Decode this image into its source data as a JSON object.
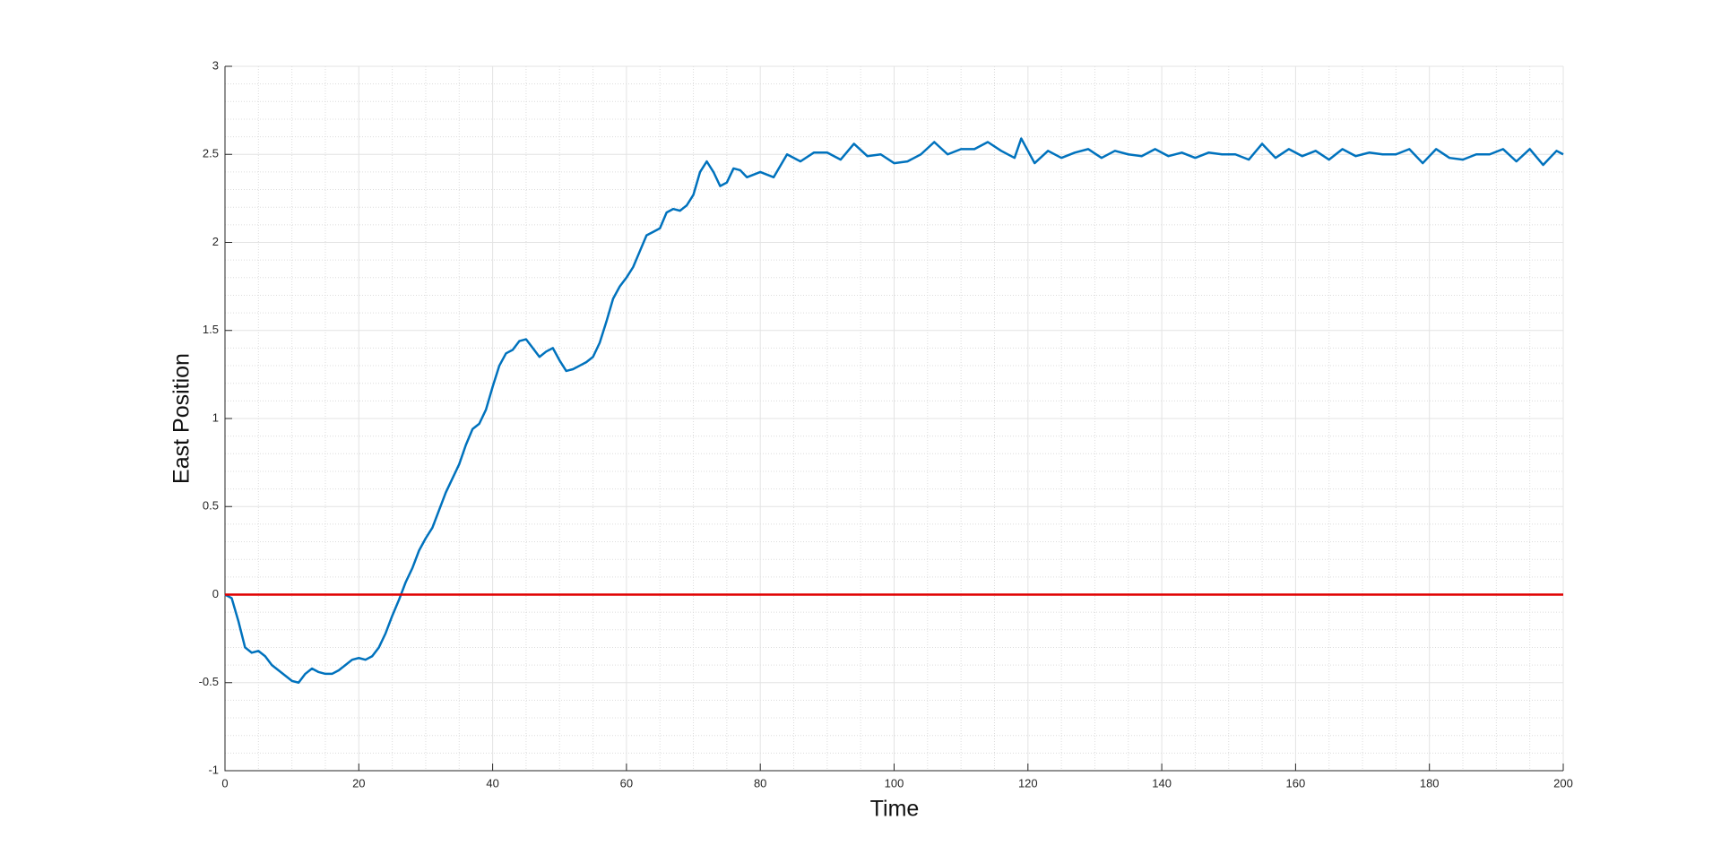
{
  "chart_data": {
    "type": "line",
    "xlabel": "Time",
    "ylabel": "East Position",
    "xlim": [
      0,
      200
    ],
    "ylim": [
      -1,
      3
    ],
    "xticks": [
      0,
      20,
      40,
      60,
      80,
      100,
      120,
      140,
      160,
      180,
      200
    ],
    "yticks": [
      -1,
      -0.5,
      0,
      0.5,
      1,
      1.5,
      2,
      2.5,
      3
    ],
    "xminorticks": [
      5,
      10,
      15,
      25,
      30,
      35,
      45,
      50,
      55,
      65,
      70,
      75,
      85,
      90,
      95,
      105,
      110,
      115,
      125,
      130,
      135,
      145,
      150,
      155,
      165,
      170,
      175,
      185,
      190,
      195
    ],
    "yminorticks": [
      -0.9,
      -0.8,
      -0.7,
      -0.6,
      -0.4,
      -0.3,
      -0.2,
      -0.1,
      0.1,
      0.2,
      0.3,
      0.4,
      0.6,
      0.7,
      0.8,
      0.9,
      1.1,
      1.2,
      1.3,
      1.4,
      1.6,
      1.7,
      1.8,
      1.9,
      2.1,
      2.2,
      2.3,
      2.4,
      2.6,
      2.7,
      2.8,
      2.9
    ],
    "grid": true,
    "minor_grid": true,
    "series": [
      {
        "color": "#0072bd",
        "x": [
          0,
          1,
          2,
          3,
          4,
          5,
          6,
          7,
          8,
          9,
          10,
          11,
          12,
          13,
          14,
          15,
          16,
          17,
          18,
          19,
          20,
          21,
          22,
          23,
          24,
          25,
          26,
          27,
          28,
          29,
          30,
          31,
          32,
          33,
          34,
          35,
          36,
          37,
          38,
          39,
          40,
          41,
          42,
          43,
          44,
          45,
          46,
          47,
          48,
          49,
          50,
          51,
          52,
          53,
          54,
          55,
          56,
          57,
          58,
          59,
          60,
          61,
          62,
          63,
          64,
          65,
          66,
          67,
          68,
          69,
          70,
          71,
          72,
          73,
          74,
          75,
          76,
          77,
          78,
          80,
          82,
          84,
          86,
          88,
          90,
          92,
          94,
          96,
          98,
          100,
          102,
          104,
          106,
          108,
          110,
          112,
          114,
          116,
          118,
          119,
          121,
          123,
          125,
          127,
          129,
          131,
          133,
          135,
          137,
          139,
          141,
          143,
          145,
          147,
          149,
          151,
          153,
          155,
          157,
          159,
          161,
          163,
          165,
          167,
          169,
          171,
          173,
          175,
          177,
          179,
          181,
          183,
          185,
          187,
          189,
          191,
          193,
          195,
          197,
          199,
          200
        ],
        "values": [
          0,
          -0.02,
          -0.15,
          -0.3,
          -0.33,
          -0.32,
          -0.35,
          -0.4,
          -0.43,
          -0.46,
          -0.49,
          -0.5,
          -0.45,
          -0.42,
          -0.44,
          -0.45,
          -0.45,
          -0.43,
          -0.4,
          -0.37,
          -0.36,
          -0.37,
          -0.35,
          -0.3,
          -0.22,
          -0.12,
          -0.03,
          0.07,
          0.15,
          0.25,
          0.32,
          0.38,
          0.48,
          0.58,
          0.66,
          0.74,
          0.85,
          0.94,
          0.97,
          1.05,
          1.18,
          1.3,
          1.37,
          1.39,
          1.44,
          1.45,
          1.4,
          1.35,
          1.38,
          1.4,
          1.33,
          1.27,
          1.28,
          1.3,
          1.32,
          1.35,
          1.43,
          1.55,
          1.68,
          1.75,
          1.8,
          1.86,
          1.95,
          2.04,
          2.06,
          2.08,
          2.17,
          2.19,
          2.18,
          2.21,
          2.27,
          2.4,
          2.46,
          2.4,
          2.32,
          2.34,
          2.42,
          2.41,
          2.37,
          2.4,
          2.37,
          2.5,
          2.46,
          2.51,
          2.51,
          2.47,
          2.56,
          2.49,
          2.5,
          2.45,
          2.46,
          2.5,
          2.57,
          2.5,
          2.53,
          2.53,
          2.57,
          2.52,
          2.48,
          2.59,
          2.45,
          2.52,
          2.48,
          2.51,
          2.53,
          2.48,
          2.52,
          2.5,
          2.49,
          2.53,
          2.49,
          2.51,
          2.48,
          2.51,
          2.5,
          2.5,
          2.47,
          2.56,
          2.48,
          2.53,
          2.49,
          2.52,
          2.47,
          2.53,
          2.49,
          2.51,
          2.5,
          2.5,
          2.53,
          2.45,
          2.53,
          2.48,
          2.47,
          2.5,
          2.5,
          2.53,
          2.46,
          2.53,
          2.44,
          2.52,
          2.5
        ]
      },
      {
        "color": "#e00000",
        "x": [
          0,
          200
        ],
        "values": [
          0,
          0
        ]
      }
    ]
  }
}
